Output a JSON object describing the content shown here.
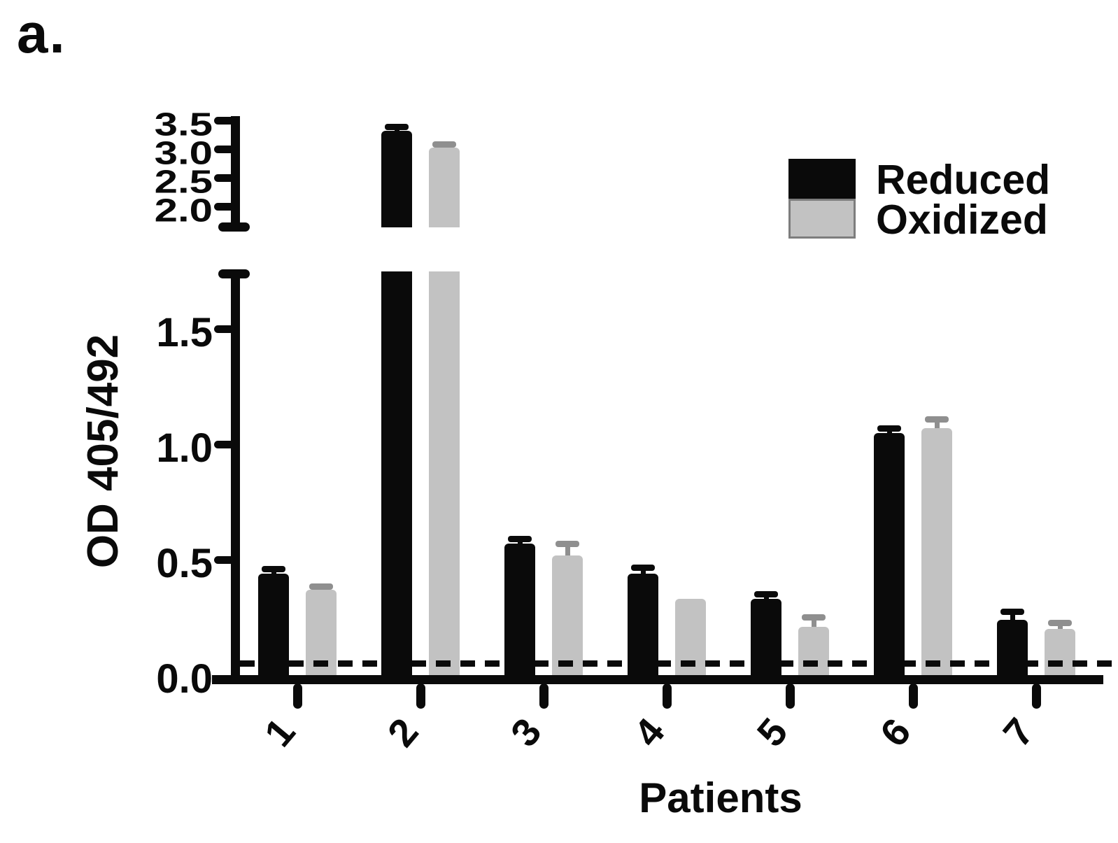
{
  "panel_label": "a.",
  "chart_data": {
    "type": "bar",
    "title": "",
    "xlabel": "Patients",
    "ylabel": "OD 405/492",
    "categories": [
      "1",
      "2",
      "3",
      "4",
      "5",
      "6",
      "7"
    ],
    "series": [
      {
        "name": "Reduced",
        "color": "#0a0a0a",
        "values": [
          0.44,
          3.32,
          0.57,
          0.44,
          0.33,
          1.05,
          0.24
        ],
        "errors": [
          0.02,
          0.06,
          0.02,
          0.025,
          0.02,
          0.02,
          0.035
        ]
      },
      {
        "name": "Oxidized",
        "color": "#c2c2c2",
        "error_color": "#8f8f8f",
        "values": [
          0.37,
          3.02,
          0.52,
          0.33,
          0.21,
          1.07,
          0.2
        ],
        "errors": [
          0.015,
          0.06,
          0.05,
          0,
          0.04,
          0.04,
          0.025
        ]
      }
    ],
    "axis_break": {
      "lower_range": [
        0,
        1.75
      ],
      "upper_range": [
        2.0,
        3.5
      ]
    },
    "y_ticks_lower": [
      "0.0",
      "0.5",
      "1.0",
      "1.5"
    ],
    "y_ticks_upper": [
      "2.0",
      "2.5",
      "3.0",
      "3.5"
    ],
    "cutoff_line": {
      "value": 0.05,
      "style": "dashed"
    },
    "legend": {
      "position": "upper-right",
      "entries": [
        {
          "label": "Reduced",
          "color": "#0a0a0a"
        },
        {
          "label": "Oxidized",
          "color": "#c2c2c2"
        }
      ]
    },
    "grid": false
  }
}
